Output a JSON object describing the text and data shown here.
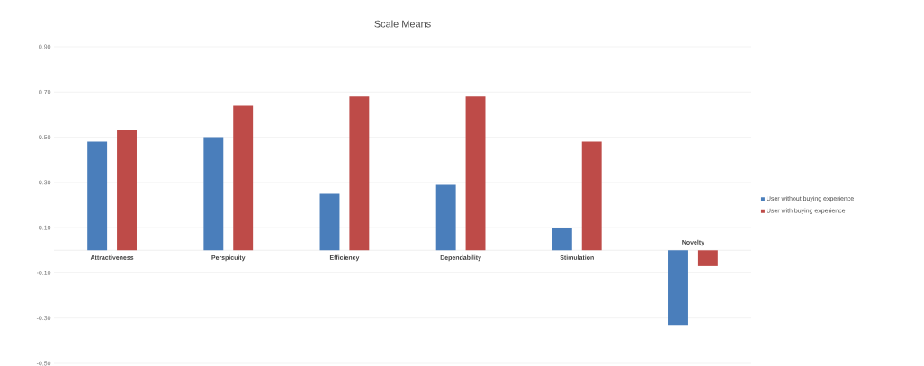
{
  "chart_data": {
    "type": "bar",
    "title": "Scale Means",
    "categories": [
      "Attractiveness",
      "Perspicuity",
      "Efficiency",
      "Dependability",
      "Stimulation",
      "Novelty"
    ],
    "series": [
      {
        "name": "User without buying experience",
        "color": "#4a7ebb",
        "values": [
          0.48,
          0.5,
          0.25,
          0.29,
          0.1,
          -0.33
        ]
      },
      {
        "name": "User with buying experience",
        "color": "#be4b48",
        "values": [
          0.53,
          0.64,
          0.68,
          0.68,
          0.48,
          -0.07
        ]
      }
    ],
    "ylim": [
      -0.5,
      0.9
    ],
    "yticks": [
      {
        "value": 0.9,
        "label": "0.90"
      },
      {
        "value": 0.7,
        "label": "0.70"
      },
      {
        "value": 0.5,
        "label": "0.50"
      },
      {
        "value": 0.3,
        "label": "0.30"
      },
      {
        "value": 0.1,
        "label": "0.10"
      },
      {
        "value": -0.1,
        "label": "-0.10"
      },
      {
        "value": -0.3,
        "label": "-0.30"
      },
      {
        "value": -0.5,
        "label": "-0.50"
      }
    ],
    "grid": "y",
    "legend": "right"
  }
}
